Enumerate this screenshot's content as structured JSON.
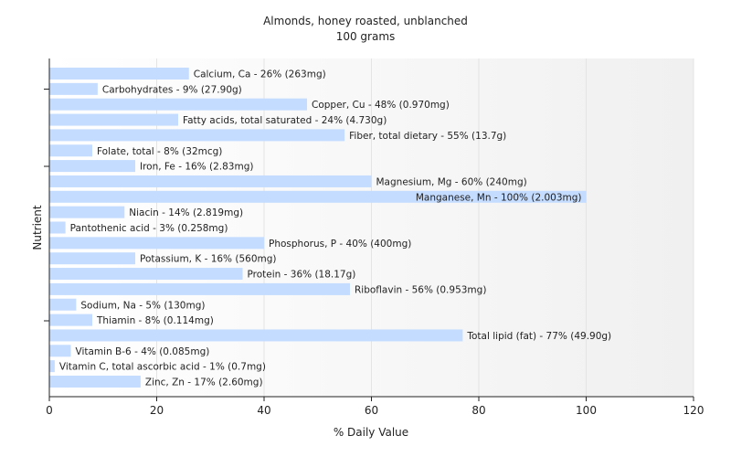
{
  "chart_data": {
    "type": "bar",
    "orientation": "horizontal",
    "title": "Almonds, honey roasted, unblanched",
    "subtitle": "100 grams",
    "xlabel": "% Daily Value",
    "ylabel": "Nutrient",
    "xlim": [
      0,
      120
    ],
    "xticks": [
      "0",
      "20",
      "40",
      "60",
      "80",
      "100",
      "120"
    ],
    "xtick_values": [
      0,
      20,
      40,
      60,
      80,
      100,
      120
    ],
    "grid": "vertical",
    "bar_color": "#c4dcff",
    "label_inside_color": "#222222",
    "categories": [
      "Calcium, Ca",
      "Carbohydrates",
      "Copper, Cu",
      "Fatty acids, total saturated",
      "Fiber, total dietary",
      "Folate, total",
      "Iron, Fe",
      "Magnesium, Mg",
      "Manganese, Mn",
      "Niacin",
      "Pantothenic acid",
      "Phosphorus, P",
      "Potassium, K",
      "Protein",
      "Riboflavin",
      "Sodium, Na",
      "Thiamin",
      "Total lipid (fat)",
      "Vitamin B-6",
      "Vitamin C, total ascorbic acid",
      "Zinc, Zn"
    ],
    "values": [
      26,
      9,
      48,
      24,
      55,
      8,
      16,
      60,
      100,
      14,
      3,
      40,
      16,
      36,
      56,
      5,
      8,
      77,
      4,
      1,
      17
    ],
    "bar_labels": [
      "Calcium, Ca - 26% (263mg)",
      "Carbohydrates - 9% (27.90g)",
      "Copper, Cu - 48% (0.970mg)",
      "Fatty acids, total saturated - 24% (4.730g)",
      "Fiber, total dietary - 55% (13.7g)",
      "Folate, total - 8% (32mcg)",
      "Iron, Fe - 16% (2.83mg)",
      "Magnesium, Mg - 60% (240mg)",
      "Manganese, Mn - 100% (2.003mg)",
      "Niacin - 14% (2.819mg)",
      "Pantothenic acid - 3% (0.258mg)",
      "Phosphorus, P - 40% (400mg)",
      "Potassium, K - 16% (560mg)",
      "Protein - 36% (18.17g)",
      "Riboflavin - 56% (0.953mg)",
      "Sodium, Na - 5% (130mg)",
      "Thiamin - 8% (0.114mg)",
      "Total lipid (fat) - 77% (49.90g)",
      "Vitamin B-6 - 4% (0.085mg)",
      "Vitamin C, total ascorbic acid - 1% (0.7mg)",
      "Zinc, Zn - 17% (2.60mg)"
    ]
  }
}
